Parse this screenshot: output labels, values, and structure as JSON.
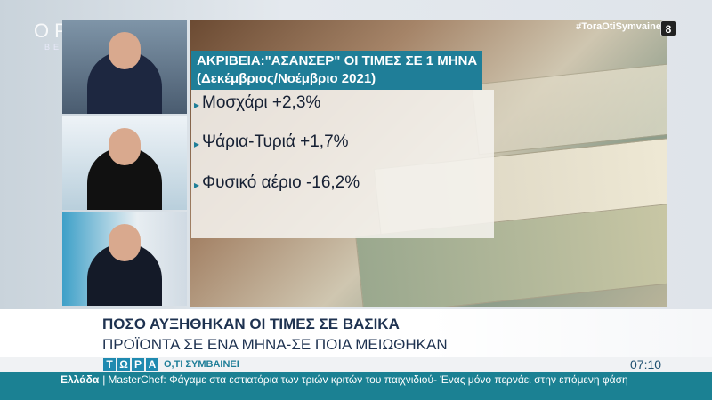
{
  "channel": {
    "logo": "OPEN",
    "logo_sub": "BEYOND",
    "hashtag": "#ToraOtiSymvainei",
    "rating": "8"
  },
  "graphic": {
    "title": "ΑΚΡΙΒΕΙΑ:\"ΑΣΑΝΣΕΡ\" ΟΙ ΤΙΜΕΣ ΣΕ 1 ΜΗΝΑ",
    "subtitle": "(Δεκέμβριος/Νοέμβριο 2021)",
    "items": [
      {
        "label": "Μοσχάρι +2,3%"
      },
      {
        "label": "Ψάρια-Τυριά +1,7%"
      },
      {
        "label": "Φυσικό αέριο -16,2%"
      }
    ],
    "accent": "#1f7e98"
  },
  "lower_third": {
    "line1": "ΠΟΣΟ ΑΥΞΗΘΗΚΑΝ ΟΙ ΤΙΜΕΣ ΣΕ ΒΑΣΙΚΑ",
    "line2": "ΠΡΟΪΟΝΤΑ ΣΕ ΕΝΑ ΜΗΝΑ-ΣΕ ΠΟΙΑ ΜΕΙΩΘΗΚΑΝ"
  },
  "show": {
    "letters": [
      "Τ",
      "Ω",
      "Ρ",
      "Α"
    ],
    "rest": "Ο,ΤΙ ΣΥΜΒΑΙΝΕΙ",
    "time": "07:10"
  },
  "ticker": {
    "category": "Ελλάδα",
    "text": "MasterChef: Φάγαμε στα εστιατόρια των τριών κριτών του παιχνιδιού- Ένας μόνο περνάει στην επόμενη φάση",
    "color": "#1b8193"
  }
}
